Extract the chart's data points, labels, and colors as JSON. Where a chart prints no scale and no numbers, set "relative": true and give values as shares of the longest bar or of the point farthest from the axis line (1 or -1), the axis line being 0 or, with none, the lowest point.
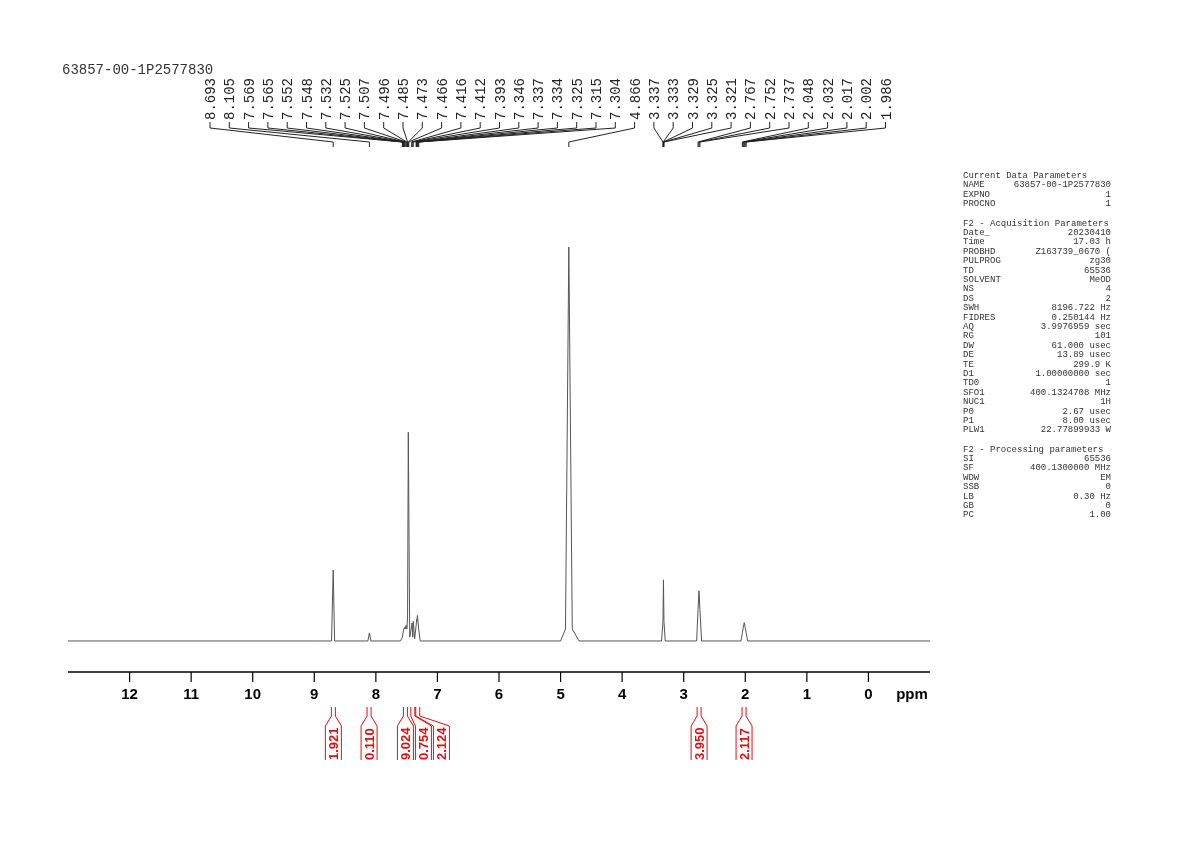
{
  "chart_data": [
    {
      "type": "line",
      "title": "63857-00-1P2577830",
      "xlabel": "ppm",
      "relative": true,
      "xlim": [
        13,
        -1
      ],
      "xticks": [
        12,
        11,
        10,
        9,
        8,
        7,
        6,
        5,
        4,
        3,
        2,
        1,
        0
      ],
      "marker": "none",
      "x": [
        13,
        9.0,
        8.72,
        8.693,
        8.67,
        8.13,
        8.105,
        8.08,
        7.6,
        7.569,
        7.548,
        7.532,
        7.525,
        7.507,
        7.496,
        7.485,
        7.473,
        7.466,
        7.45,
        7.416,
        7.412,
        7.4,
        7.393,
        7.37,
        7.346,
        7.337,
        7.334,
        7.325,
        7.315,
        7.304,
        7.28,
        5.0,
        4.92,
        4.866,
        4.81,
        4.7,
        3.36,
        3.337,
        3.329,
        3.321,
        3.3,
        2.79,
        2.767,
        2.752,
        2.737,
        2.71,
        2.07,
        2.048,
        2.032,
        2.017,
        2.002,
        1.986,
        1.96,
        -1
      ],
      "series": [
        {
          "color": "#555555",
          "values": [
            0.073,
            0.073,
            0.073,
            0.24,
            0.073,
            0.073,
            0.092,
            0.073,
            0.073,
            0.082,
            0.101,
            0.105,
            0.101,
            0.11,
            0.101,
            0.129,
            0.564,
            0.416,
            0.082,
            0.11,
            0.115,
            0.082,
            0.119,
            0.078,
            0.11,
            0.124,
            0.119,
            0.133,
            0.119,
            0.101,
            0.073,
            0.073,
            0.101,
            1.0,
            0.101,
            0.073,
            0.073,
            0.119,
            0.217,
            0.119,
            0.073,
            0.073,
            0.147,
            0.191,
            0.147,
            0.073,
            0.073,
            0.092,
            0.105,
            0.116,
            0.105,
            0.092,
            0.073,
            0.073
          ]
        }
      ],
      "annotations": [
        "8.693",
        "8.105",
        "7.569",
        "7.565",
        "7.552",
        "7.548",
        "7.532",
        "7.525",
        "7.507",
        "7.496",
        "7.485",
        "7.473",
        "7.466",
        "7.416",
        "7.412",
        "7.393",
        "7.346",
        "7.337",
        "7.334",
        "7.325",
        "7.315",
        "7.304",
        "4.866",
        "3.337",
        "3.333",
        "3.329",
        "3.325",
        "3.321",
        "2.767",
        "2.752",
        "2.737",
        "2.048",
        "2.032",
        "2.017",
        "2.002",
        "1.986",
        {
          "text": "1.921",
          "x": 8.69
        },
        {
          "text": "0.110",
          "x": 8.11
        },
        {
          "text": "9.024",
          "x": 7.52
        },
        {
          "text": "0.754",
          "x": 7.4
        },
        {
          "text": "2.124",
          "x": 7.32
        },
        {
          "text": "3.950",
          "x": 2.75
        },
        {
          "text": "2.117",
          "x": 2.02
        }
      ]
    },
    {
      "type": "other",
      "title": "Current Data Parameters",
      "annotations": [
        "NAME 63857-00-1P2577830",
        "EXPNO 1",
        "PROCNO 1"
      ]
    },
    {
      "type": "other",
      "title": "F2 - Acquisition Parameters",
      "annotations": [
        "Date_ 20230410",
        "Time 17.03 h",
        "PROBHD Z163739_0670 (",
        "PULPROG zg30",
        "TD 65536",
        "SOLVENT MeOD",
        "NS 4",
        "DS 2",
        "SWH 8196.722 Hz",
        "FIDRES 0.250144 Hz",
        "AQ 3.9976959 sec",
        "RG 101",
        "DW 61.000 usec",
        "DE 13.89 usec",
        "TE 299.9 K",
        "D1 1.00000000 sec",
        "TD0 1",
        "SFO1 400.1324708 MHz",
        "NUC1 1H",
        "P0 2.67 usec",
        "P1 8.00 usec",
        "PLW1 22.77899933 W"
      ]
    },
    {
      "type": "other",
      "title": "F2 - Processing parameters",
      "annotations": [
        "SI 65536",
        "SF 400.1300000 MHz",
        "WDW EM",
        "SSB 0",
        "LB 0.30 Hz",
        "GB 0",
        "PC 1.00"
      ]
    }
  ]
}
